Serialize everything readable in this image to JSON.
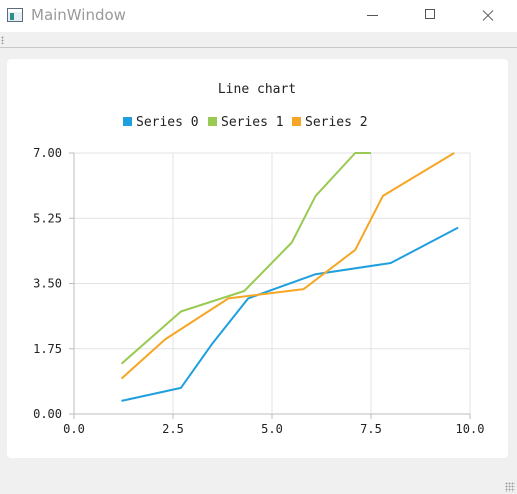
{
  "window": {
    "title": "MainWindow",
    "icon": "app-window-icon"
  },
  "chart_data": {
    "type": "line",
    "title": "Line chart",
    "xlabel": "",
    "ylabel": "",
    "xlim": [
      0,
      10
    ],
    "ylim": [
      0,
      7
    ],
    "x_ticks": [
      "0.0",
      "2.5",
      "5.0",
      "7.5",
      "10.0"
    ],
    "y_ticks": [
      "0.00",
      "1.75",
      "3.50",
      "5.25",
      "7.00"
    ],
    "grid": true,
    "legend_position": "top",
    "series": [
      {
        "name": "Series 0",
        "color": "#209fdf",
        "points": [
          [
            1.2,
            0.35
          ],
          [
            2.7,
            0.7
          ],
          [
            3.5,
            1.9
          ],
          [
            4.4,
            3.1
          ],
          [
            6.1,
            3.75
          ],
          [
            8.0,
            4.05
          ],
          [
            9.7,
            5.0
          ]
        ]
      },
      {
        "name": "Series 1",
        "color": "#99ca53",
        "points": [
          [
            1.2,
            1.35
          ],
          [
            2.7,
            2.75
          ],
          [
            4.3,
            3.3
          ],
          [
            5.5,
            4.6
          ],
          [
            6.1,
            5.85
          ],
          [
            7.1,
            7.0
          ],
          [
            7.5,
            7.0
          ]
        ]
      },
      {
        "name": "Series 2",
        "color": "#f6a625",
        "points": [
          [
            1.2,
            0.95
          ],
          [
            2.3,
            2.0
          ],
          [
            3.9,
            3.1
          ],
          [
            5.8,
            3.35
          ],
          [
            7.1,
            4.4
          ],
          [
            7.8,
            5.85
          ],
          [
            9.6,
            7.0
          ]
        ]
      }
    ]
  }
}
